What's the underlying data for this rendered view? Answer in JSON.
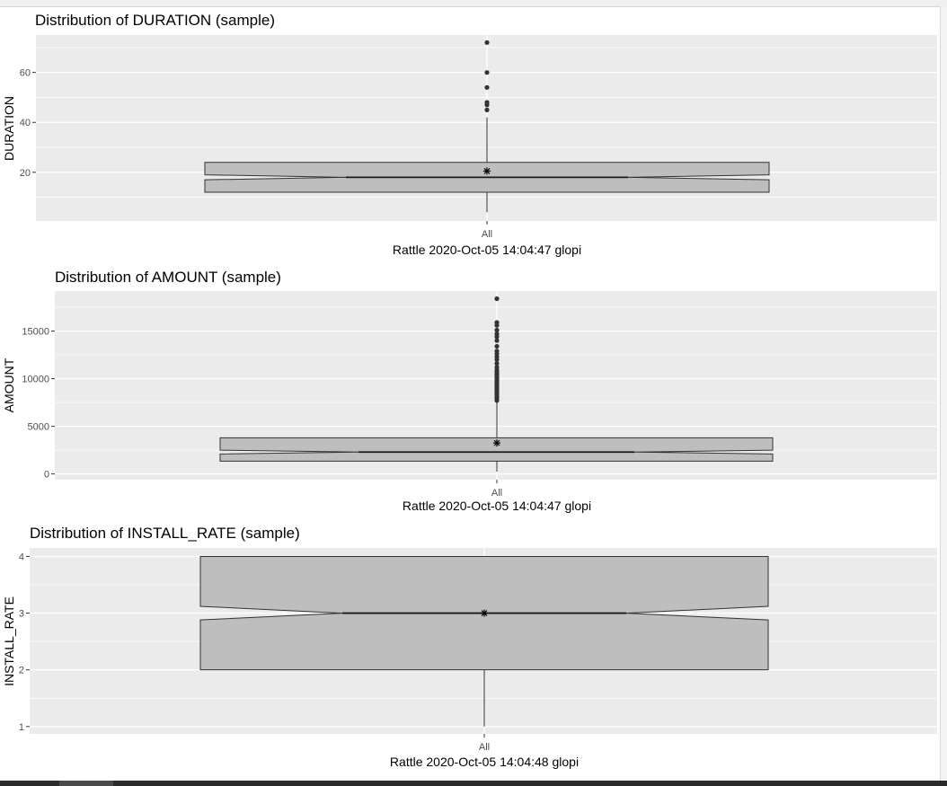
{
  "chart_data": [
    {
      "type": "boxplot",
      "title": "Distribution of DURATION (sample)",
      "xlabel": "Rattle 2020-Oct-05 14:04:47 glopi",
      "ylabel": "DURATION",
      "categories": [
        "All"
      ],
      "y_ticks": [
        "20",
        "40",
        "60"
      ],
      "y_tick_values": [
        20,
        40,
        60
      ],
      "ylim": [
        0.5,
        75
      ],
      "notched": true,
      "box": {
        "min": 4,
        "q1": 12,
        "median": 18,
        "q3": 24,
        "max": 42,
        "mean": 20.5,
        "notch_low": 17,
        "notch_high": 19
      },
      "outliers": [
        45,
        47,
        48,
        54,
        60,
        72
      ]
    },
    {
      "type": "boxplot",
      "title": "Distribution of AMOUNT (sample)",
      "xlabel": "Rattle 2020-Oct-05 14:04:47 glopi",
      "ylabel": "AMOUNT",
      "categories": [
        "All"
      ],
      "y_ticks": [
        "0",
        "5000",
        "10000",
        "15000"
      ],
      "y_tick_values": [
        0,
        5000,
        10000,
        15000
      ],
      "ylim": [
        -600,
        19200
      ],
      "notched": true,
      "box": {
        "min": 250,
        "q1": 1350,
        "median": 2300,
        "q3": 3800,
        "max": 7500,
        "mean": 3250,
        "notch_low": 2100,
        "notch_high": 2500
      },
      "outliers": [
        7700,
        7900,
        8100,
        8300,
        8500,
        8700,
        8900,
        9100,
        9300,
        9500,
        9700,
        9900,
        10100,
        10300,
        10500,
        10700,
        10900,
        11200,
        11600,
        12000,
        12300,
        12600,
        12900,
        13400,
        14000,
        14400,
        14700,
        15100,
        15600,
        15900,
        18400
      ]
    },
    {
      "type": "boxplot",
      "title": "Distribution of INSTALL_RATE (sample)",
      "xlabel": "Rattle 2020-Oct-05 14:04:48 glopi",
      "ylabel": "INSTALL_RATE",
      "categories": [
        "All"
      ],
      "y_ticks": [
        "1",
        "2",
        "3",
        "4"
      ],
      "y_tick_values": [
        1,
        2,
        3,
        4
      ],
      "ylim": [
        0.87,
        4.15
      ],
      "notched": true,
      "box": {
        "min": 1,
        "q1": 2,
        "median": 3,
        "q3": 4,
        "max": 4,
        "mean": 3,
        "notch_low": 2.88,
        "notch_high": 3.12
      },
      "outliers": []
    }
  ]
}
